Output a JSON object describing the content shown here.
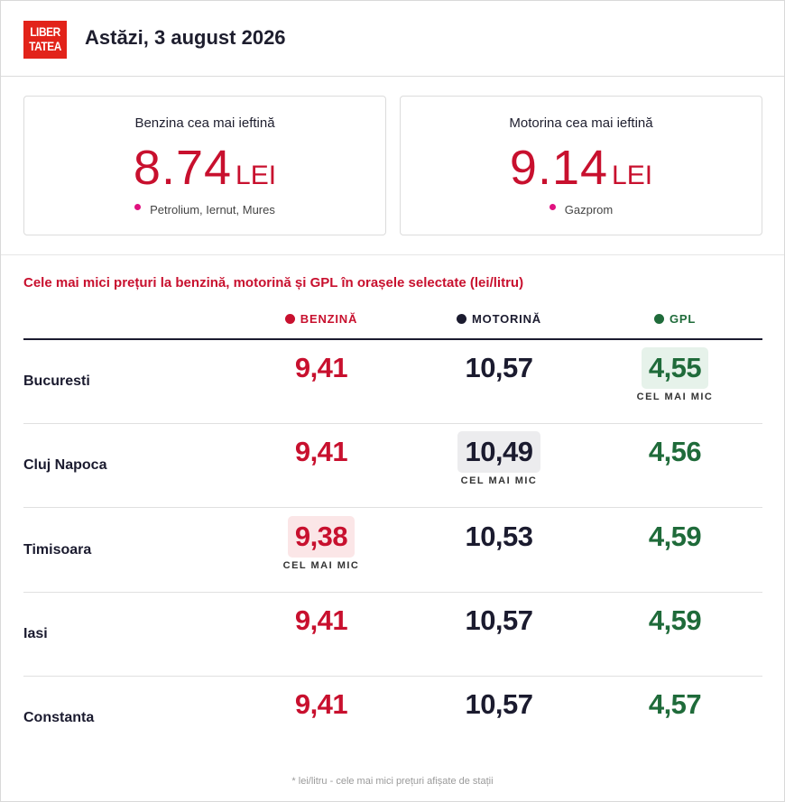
{
  "header": {
    "logo_line1": "LIBER",
    "logo_line2": "TATEA",
    "date_label": "Astăzi, 3 august 2026"
  },
  "cards": [
    {
      "title": "Benzina cea mai ieftină",
      "price": "8.74",
      "unit": "LEI",
      "station": "Petrolium, Iernut, Mures"
    },
    {
      "title": "Motorina cea mai ieftină",
      "price": "9.14",
      "unit": "LEI",
      "station": "Gazprom"
    }
  ],
  "table": {
    "title": "Cele mai mici prețuri la benzină, motorină și GPL în orașele selectate (lei/litru)",
    "columns": [
      {
        "label": "BENZINĂ",
        "color": "#c8102e"
      },
      {
        "label": "MOTORINĂ",
        "color": "#1b1b2f"
      },
      {
        "label": "GPL",
        "color": "#1f6b3a"
      }
    ],
    "cheapest_label": "CEL MAI MIC",
    "rows": [
      {
        "city": "Bucuresti",
        "benzina": "9,41",
        "motorina": "10,57",
        "gpl": "4,55",
        "cheapest": "gpl"
      },
      {
        "city": "Cluj Napoca",
        "benzina": "9,41",
        "motorina": "10,49",
        "gpl": "4,56",
        "cheapest": "motorina"
      },
      {
        "city": "Timisoara",
        "benzina": "9,38",
        "motorina": "10,53",
        "gpl": "4,59",
        "cheapest": "benzina"
      },
      {
        "city": "Iasi",
        "benzina": "9,41",
        "motorina": "10,57",
        "gpl": "4,59",
        "cheapest": ""
      },
      {
        "city": "Constanta",
        "benzina": "9,41",
        "motorina": "10,57",
        "gpl": "4,57",
        "cheapest": ""
      }
    ]
  },
  "footnote": "* lei/litru - cele mai mici prețuri afișate de stații"
}
